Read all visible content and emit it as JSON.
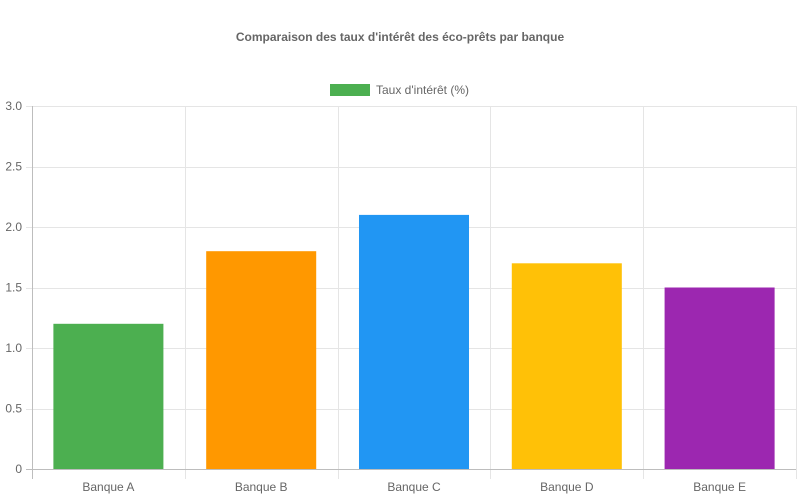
{
  "chart_data": {
    "type": "bar",
    "title": "Comparaison des taux d'intérêt des éco-prêts par banque",
    "xlabel": "",
    "ylabel": "",
    "categories": [
      "Banque A",
      "Banque B",
      "Banque C",
      "Banque D",
      "Banque E"
    ],
    "series": [
      {
        "name": "Taux d'intérêt (%)",
        "values": [
          1.2,
          1.8,
          2.1,
          1.7,
          1.5
        ],
        "colors": [
          "#4CAF50",
          "#FF9800",
          "#2196F3",
          "#FFC107",
          "#9C27B0"
        ]
      }
    ],
    "ylim": [
      0,
      3.0
    ],
    "yticks": [
      "0",
      "0.5",
      "1.0",
      "1.5",
      "2.0",
      "2.5",
      "3.0"
    ],
    "ytick_values": [
      0,
      0.5,
      1.0,
      1.5,
      2.0,
      2.5,
      3.0
    ],
    "grid": true,
    "legend": {
      "placement": "top-center",
      "color": "#4CAF50"
    }
  }
}
